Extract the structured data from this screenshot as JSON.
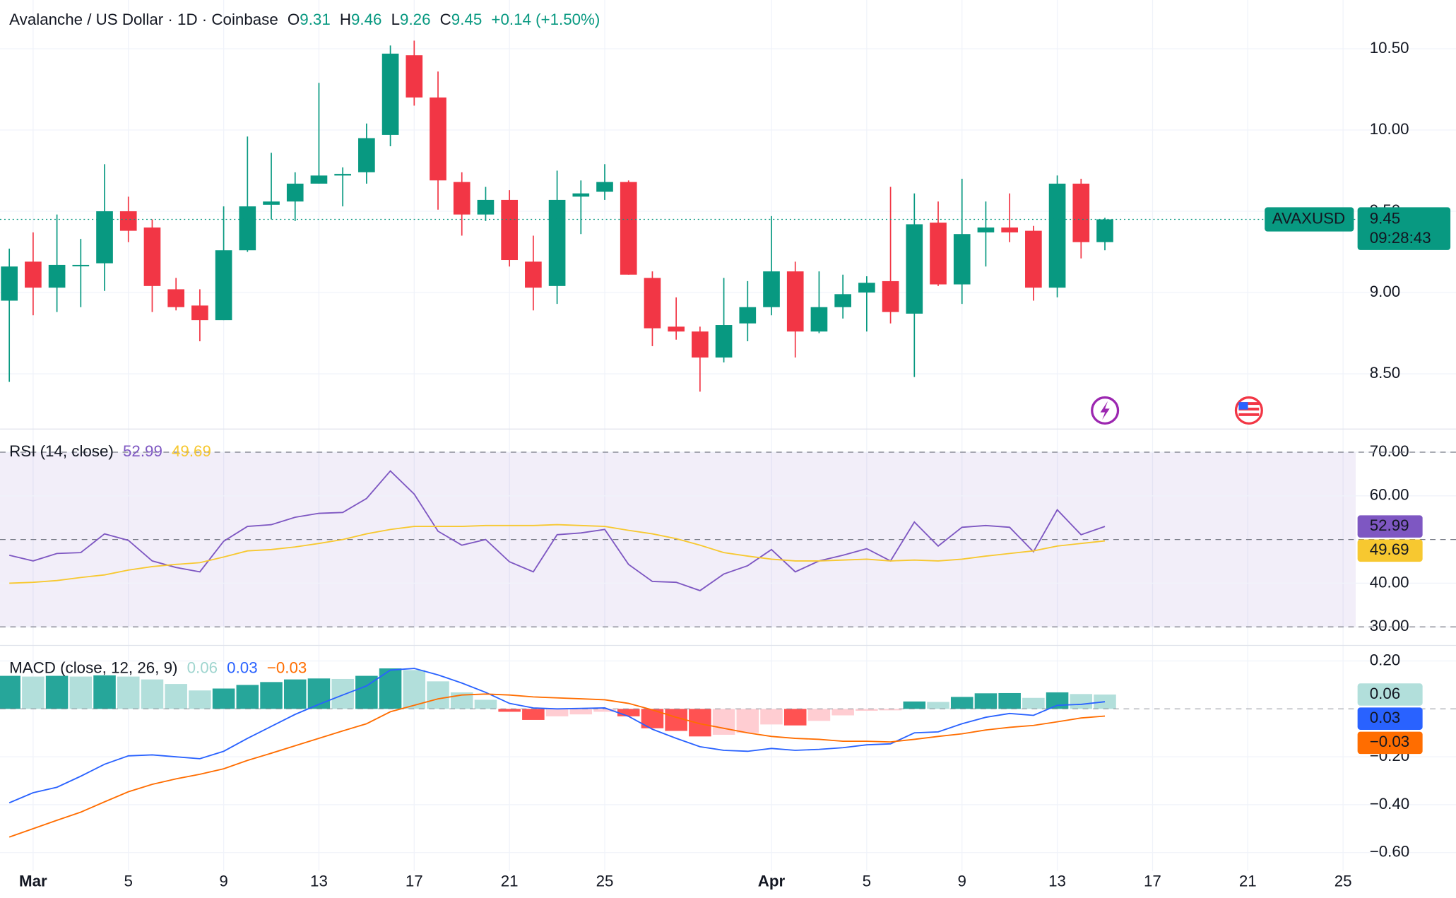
{
  "chart_data": [
    {
      "type": "candlestick",
      "title": "Avalanche / US Dollar · 1D · Coinbase",
      "labels": {
        "open": "O",
        "high": "H",
        "low": "L",
        "close": "C"
      },
      "change": "+0.14 (+1.50%)",
      "symbol": "AVAXUSD",
      "countdown": "09:28:43",
      "x": [
        "Feb 28",
        "Mar 1",
        "Mar 2",
        "Mar 3",
        "Mar 4",
        "Mar 5",
        "Mar 6",
        "Mar 7",
        "Mar 8",
        "Mar 9",
        "Mar 10",
        "Mar 11",
        "Mar 12",
        "Mar 13",
        "Mar 14",
        "Mar 15",
        "Mar 16",
        "Mar 17",
        "Mar 18",
        "Mar 19",
        "Mar 20",
        "Mar 21",
        "Mar 22",
        "Mar 23",
        "Mar 24",
        "Mar 25",
        "Mar 26",
        "Mar 27",
        "Mar 28",
        "Mar 29",
        "Mar 30",
        "Mar 31",
        "Apr 1",
        "Apr 2",
        "Apr 3",
        "Apr 4",
        "Apr 5",
        "Apr 6",
        "Apr 7",
        "Apr 8",
        "Apr 9",
        "Apr 10",
        "Apr 11",
        "Apr 12",
        "Apr 13",
        "Apr 14",
        "Apr 15"
      ],
      "open": [
        8.95,
        9.19,
        9.03,
        9.17,
        9.18,
        9.5,
        9.4,
        9.02,
        8.92,
        8.83,
        9.26,
        9.54,
        9.56,
        9.67,
        9.72,
        9.74,
        9.97,
        10.46,
        10.2,
        9.68,
        9.48,
        9.57,
        9.19,
        9.04,
        9.59,
        9.62,
        9.68,
        9.09,
        8.79,
        8.76,
        8.6,
        8.81,
        8.91,
        9.13,
        8.76,
        8.91,
        9.0,
        9.07,
        8.87,
        9.43,
        9.05,
        9.37,
        9.4,
        9.38,
        9.03,
        9.67,
        9.31
      ],
      "high": [
        9.27,
        9.37,
        9.48,
        9.33,
        9.79,
        9.59,
        9.45,
        9.09,
        9.02,
        9.53,
        9.96,
        9.86,
        9.74,
        10.29,
        9.77,
        10.04,
        10.52,
        10.55,
        10.36,
        9.74,
        9.65,
        9.63,
        9.35,
        9.75,
        9.69,
        9.79,
        9.69,
        9.13,
        8.97,
        8.79,
        9.09,
        9.07,
        9.47,
        9.19,
        9.13,
        9.11,
        9.1,
        9.65,
        9.61,
        9.56,
        9.7,
        9.56,
        9.61,
        9.41,
        9.72,
        9.7,
        9.46
      ],
      "low": [
        8.45,
        8.86,
        8.88,
        8.91,
        9.01,
        9.31,
        8.88,
        8.89,
        8.7,
        8.83,
        9.25,
        9.45,
        9.44,
        9.67,
        9.53,
        9.67,
        9.9,
        10.15,
        9.51,
        9.35,
        9.44,
        9.16,
        8.89,
        8.93,
        9.36,
        9.57,
        9.11,
        8.67,
        8.71,
        8.39,
        8.57,
        8.7,
        8.86,
        8.6,
        8.75,
        8.84,
        8.76,
        8.81,
        8.48,
        9.04,
        8.93,
        9.16,
        9.31,
        8.95,
        8.97,
        9.21,
        9.26
      ],
      "close": [
        9.16,
        9.03,
        9.17,
        9.17,
        9.5,
        9.38,
        9.04,
        8.91,
        8.83,
        9.26,
        9.53,
        9.56,
        9.67,
        9.72,
        9.73,
        9.95,
        10.47,
        10.2,
        9.69,
        9.48,
        9.57,
        9.2,
        9.03,
        9.57,
        9.61,
        9.68,
        9.11,
        8.78,
        8.76,
        8.6,
        8.8,
        8.91,
        9.13,
        8.76,
        8.91,
        8.99,
        9.06,
        8.88,
        9.42,
        9.05,
        9.36,
        9.4,
        9.37,
        9.03,
        9.67,
        9.31,
        9.45
      ],
      "up_color": "#089981",
      "down_color": "#f23645",
      "ylim": [
        8.16,
        10.8
      ],
      "yticks": [
        {
          "value": 8.5,
          "label": "8.50"
        },
        {
          "value": 9,
          "label": "9.00"
        },
        {
          "value": 9.5,
          "label": "9.50"
        },
        {
          "value": 10,
          "label": "10.00"
        },
        {
          "value": 10.5,
          "label": "10.50"
        }
      ],
      "xticks": [
        {
          "value": "Mar 1",
          "label": "Mar"
        },
        {
          "value": "Mar 5",
          "label": "5"
        },
        {
          "value": "Mar 9",
          "label": "9"
        },
        {
          "value": "Mar 13",
          "label": "13"
        },
        {
          "value": "Mar 17",
          "label": "17"
        },
        {
          "value": "Mar 21",
          "label": "21"
        },
        {
          "value": "Mar 25",
          "label": "25"
        },
        {
          "value": "Apr 1",
          "label": "Apr"
        },
        {
          "value": "Apr 5",
          "label": "5"
        },
        {
          "value": "Apr 9",
          "label": "9"
        },
        {
          "value": "Apr 13",
          "label": "13"
        },
        {
          "value": "Apr 17",
          "label": "17"
        },
        {
          "value": "Apr 21",
          "label": "21"
        },
        {
          "value": "Apr 25",
          "label": "25"
        }
      ],
      "grid": true
    },
    {
      "type": "rsi",
      "title": "RSI (14, close)",
      "series": [
        {
          "color": "#7e57c2",
          "values": [
            46.4,
            45.1,
            46.8,
            47.0,
            51.3,
            49.8,
            45.1,
            43.6,
            42.6,
            49.6,
            53.0,
            53.4,
            55.1,
            56.0,
            56.2,
            59.4,
            65.7,
            60.4,
            51.9,
            48.7,
            50.0,
            44.9,
            42.6,
            51.1,
            51.5,
            52.3,
            44.3,
            40.4,
            40.2,
            38.3,
            42.1,
            44.0,
            47.7,
            42.6,
            45.1,
            46.4,
            47.9,
            45.1,
            54.0,
            48.5,
            52.8,
            53.2,
            52.8,
            47.2,
            56.8,
            51.1,
            52.99
          ]
        },
        {
          "color": "#f7c830",
          "values": [
            40.0,
            40.2,
            40.6,
            41.3,
            41.9,
            43.0,
            43.8,
            44.3,
            44.7,
            46.0,
            47.4,
            47.7,
            48.3,
            49.1,
            50.0,
            51.3,
            52.3,
            53.0,
            53.0,
            53.0,
            53.2,
            53.2,
            53.2,
            53.4,
            53.2,
            53.0,
            52.1,
            51.3,
            50.2,
            48.7,
            47.0,
            46.2,
            45.5,
            45.1,
            45.1,
            45.3,
            45.5,
            45.1,
            45.3,
            45.1,
            45.5,
            46.2,
            46.8,
            47.4,
            48.5,
            49.1,
            49.69
          ]
        }
      ],
      "ylim": [
        25.75,
        75.3
      ],
      "yticks": [
        {
          "value": 30,
          "label": "30.00"
        },
        {
          "value": 40,
          "label": "40.00"
        },
        {
          "value": 60,
          "label": "60.00"
        },
        {
          "value": 70,
          "label": "70.00"
        }
      ],
      "levels": [
        70,
        50,
        30
      ],
      "band": [
        30,
        70
      ],
      "band_color": "#7e57c2"
    },
    {
      "type": "macd",
      "title": "MACD (close, 12, 26, 9)",
      "histogram": {
        "values": [
          0.138,
          0.135,
          0.138,
          0.135,
          0.14,
          0.135,
          0.123,
          0.104,
          0.077,
          0.085,
          0.1,
          0.112,
          0.123,
          0.127,
          0.125,
          0.138,
          0.169,
          0.162,
          0.115,
          0.069,
          0.038,
          -0.012,
          -0.046,
          -0.031,
          -0.023,
          -0.012,
          -0.031,
          -0.081,
          -0.092,
          -0.115,
          -0.108,
          -0.1,
          -0.065,
          -0.069,
          -0.05,
          -0.027,
          -0.008,
          -0.006,
          0.031,
          0.029,
          0.05,
          0.065,
          0.066,
          0.046,
          0.069,
          0.062,
          0.06
        ],
        "colors": {
          "rise_above": "#26a69a",
          "fall_above": "#b2dfdb",
          "fall_below": "#ff5252",
          "rise_below": "#ffcdd2"
        }
      },
      "series": [
        {
          "color": "#2962ff",
          "values": [
            -0.392,
            -0.35,
            -0.327,
            -0.281,
            -0.231,
            -0.196,
            -0.192,
            -0.2,
            -0.208,
            -0.177,
            -0.123,
            -0.073,
            -0.023,
            0.019,
            0.058,
            0.096,
            0.162,
            0.169,
            0.142,
            0.108,
            0.069,
            0.023,
            0.004,
            0.0,
            0.002,
            0.004,
            -0.031,
            -0.085,
            -0.123,
            -0.158,
            -0.173,
            -0.177,
            -0.165,
            -0.173,
            -0.169,
            -0.162,
            -0.15,
            -0.146,
            -0.1,
            -0.096,
            -0.062,
            -0.035,
            -0.019,
            -0.027,
            0.015,
            0.019,
            0.03
          ]
        },
        {
          "color": "#ff6d00",
          "values": [
            -0.535,
            -0.5,
            -0.465,
            -0.431,
            -0.388,
            -0.346,
            -0.315,
            -0.292,
            -0.273,
            -0.25,
            -0.215,
            -0.185,
            -0.154,
            -0.123,
            -0.092,
            -0.062,
            -0.012,
            0.015,
            0.042,
            0.058,
            0.062,
            0.058,
            0.05,
            0.046,
            0.042,
            0.038,
            0.023,
            -0.004,
            -0.035,
            -0.062,
            -0.081,
            -0.1,
            -0.115,
            -0.123,
            -0.127,
            -0.135,
            -0.135,
            -0.138,
            -0.127,
            -0.115,
            -0.104,
            -0.088,
            -0.077,
            -0.069,
            -0.054,
            -0.038,
            -0.03
          ],
          "value_labels": {
            "46": "−0.03"
          }
        }
      ],
      "ylim": [
        -0.677,
        0.265
      ],
      "yticks": [
        {
          "value": 0.2,
          "label": "0.20"
        },
        {
          "value": -0.2,
          "label": "−0.20"
        },
        {
          "value": -0.4,
          "label": "−0.40"
        },
        {
          "value": -0.6,
          "label": "−0.60"
        }
      ]
    }
  ]
}
